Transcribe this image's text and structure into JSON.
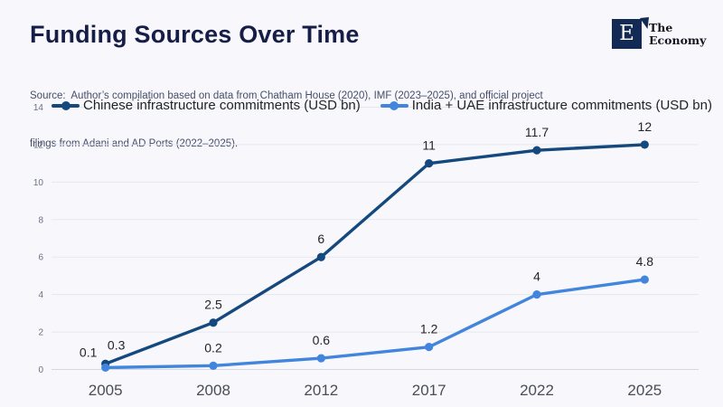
{
  "header": {
    "title": "Funding Sources Over Time",
    "source_line1": "Source:  Author’s compilation based on data from Chatham House (2020), IMF (2023–2025), and official project",
    "source_line2": "filings from Adani and AD Ports (2022–2025)."
  },
  "logo": {
    "monogram": "E",
    "name_line1": "The",
    "name_line2": "Economy"
  },
  "colors": {
    "background": "#f8f8fc",
    "title": "#161e48",
    "grid": "#e5e7f0",
    "zero_line": "#d5d8e2",
    "series_chinese": "#15497e",
    "series_india_uae": "#4285dc",
    "logo_navy": "#132a54"
  },
  "chart_data": {
    "type": "line",
    "title": "Funding Sources Over Time",
    "categories": [
      "2005",
      "2008",
      "2012",
      "2017",
      "2022",
      "2025"
    ],
    "series": [
      {
        "name": "Chinese infrastructure commitments (USD bn)",
        "color": "#15497e",
        "values": [
          0.3,
          2.5,
          6,
          11,
          11.7,
          12
        ]
      },
      {
        "name": "India + UAE infrastructure commitments (USD bn)",
        "color": "#4285dc",
        "values": [
          0.1,
          0.2,
          0.6,
          1.2,
          4,
          4.8
        ]
      }
    ],
    "xlabel": "",
    "ylabel": "",
    "ylim": [
      0,
      14
    ],
    "yticks": [
      0,
      2,
      4,
      6,
      8,
      10,
      12,
      14
    ],
    "grid": "horizontal",
    "legend_position": "top",
    "data_labels": true
  }
}
